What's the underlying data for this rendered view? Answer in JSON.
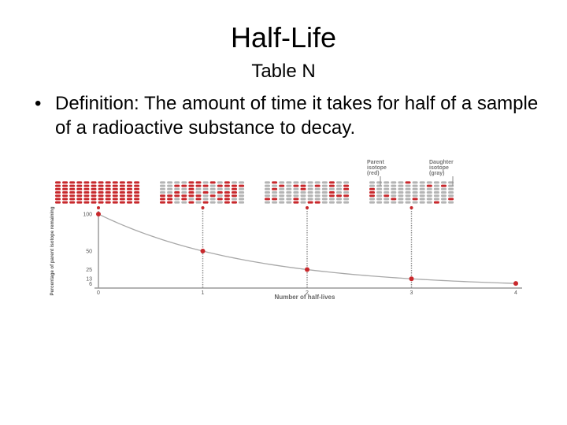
{
  "slide": {
    "title": "Half-Life",
    "subtitle": "Table N",
    "bullet": "Definition:  The amount of time it takes for half of a sample of a radioactive substance to decay."
  },
  "chart_data": {
    "type": "line",
    "title": "",
    "xlabel": "Number of half-lives",
    "ylabel": "Percentage of parent isotope remaining",
    "x": [
      0,
      1,
      2,
      3,
      4
    ],
    "xticks": [
      "0",
      "1",
      "2",
      "3",
      "4"
    ],
    "yticks": [
      "100",
      "50",
      "25",
      "13",
      "6"
    ],
    "series": [
      {
        "values": [
          100,
          50,
          25,
          12.5,
          6.25
        ]
      }
    ],
    "xlim": [
      0,
      4
    ],
    "ylim": [
      0,
      100
    ],
    "legend": {
      "parent": "Parent isotope (red)",
      "daughter": "Daughter isotope (gray)"
    },
    "grid": false
  },
  "colors": {
    "parent": "#c8282c",
    "daughter": "#b4b4b4",
    "axis": "#9a9a9a",
    "curve": "#a8a8a8"
  }
}
